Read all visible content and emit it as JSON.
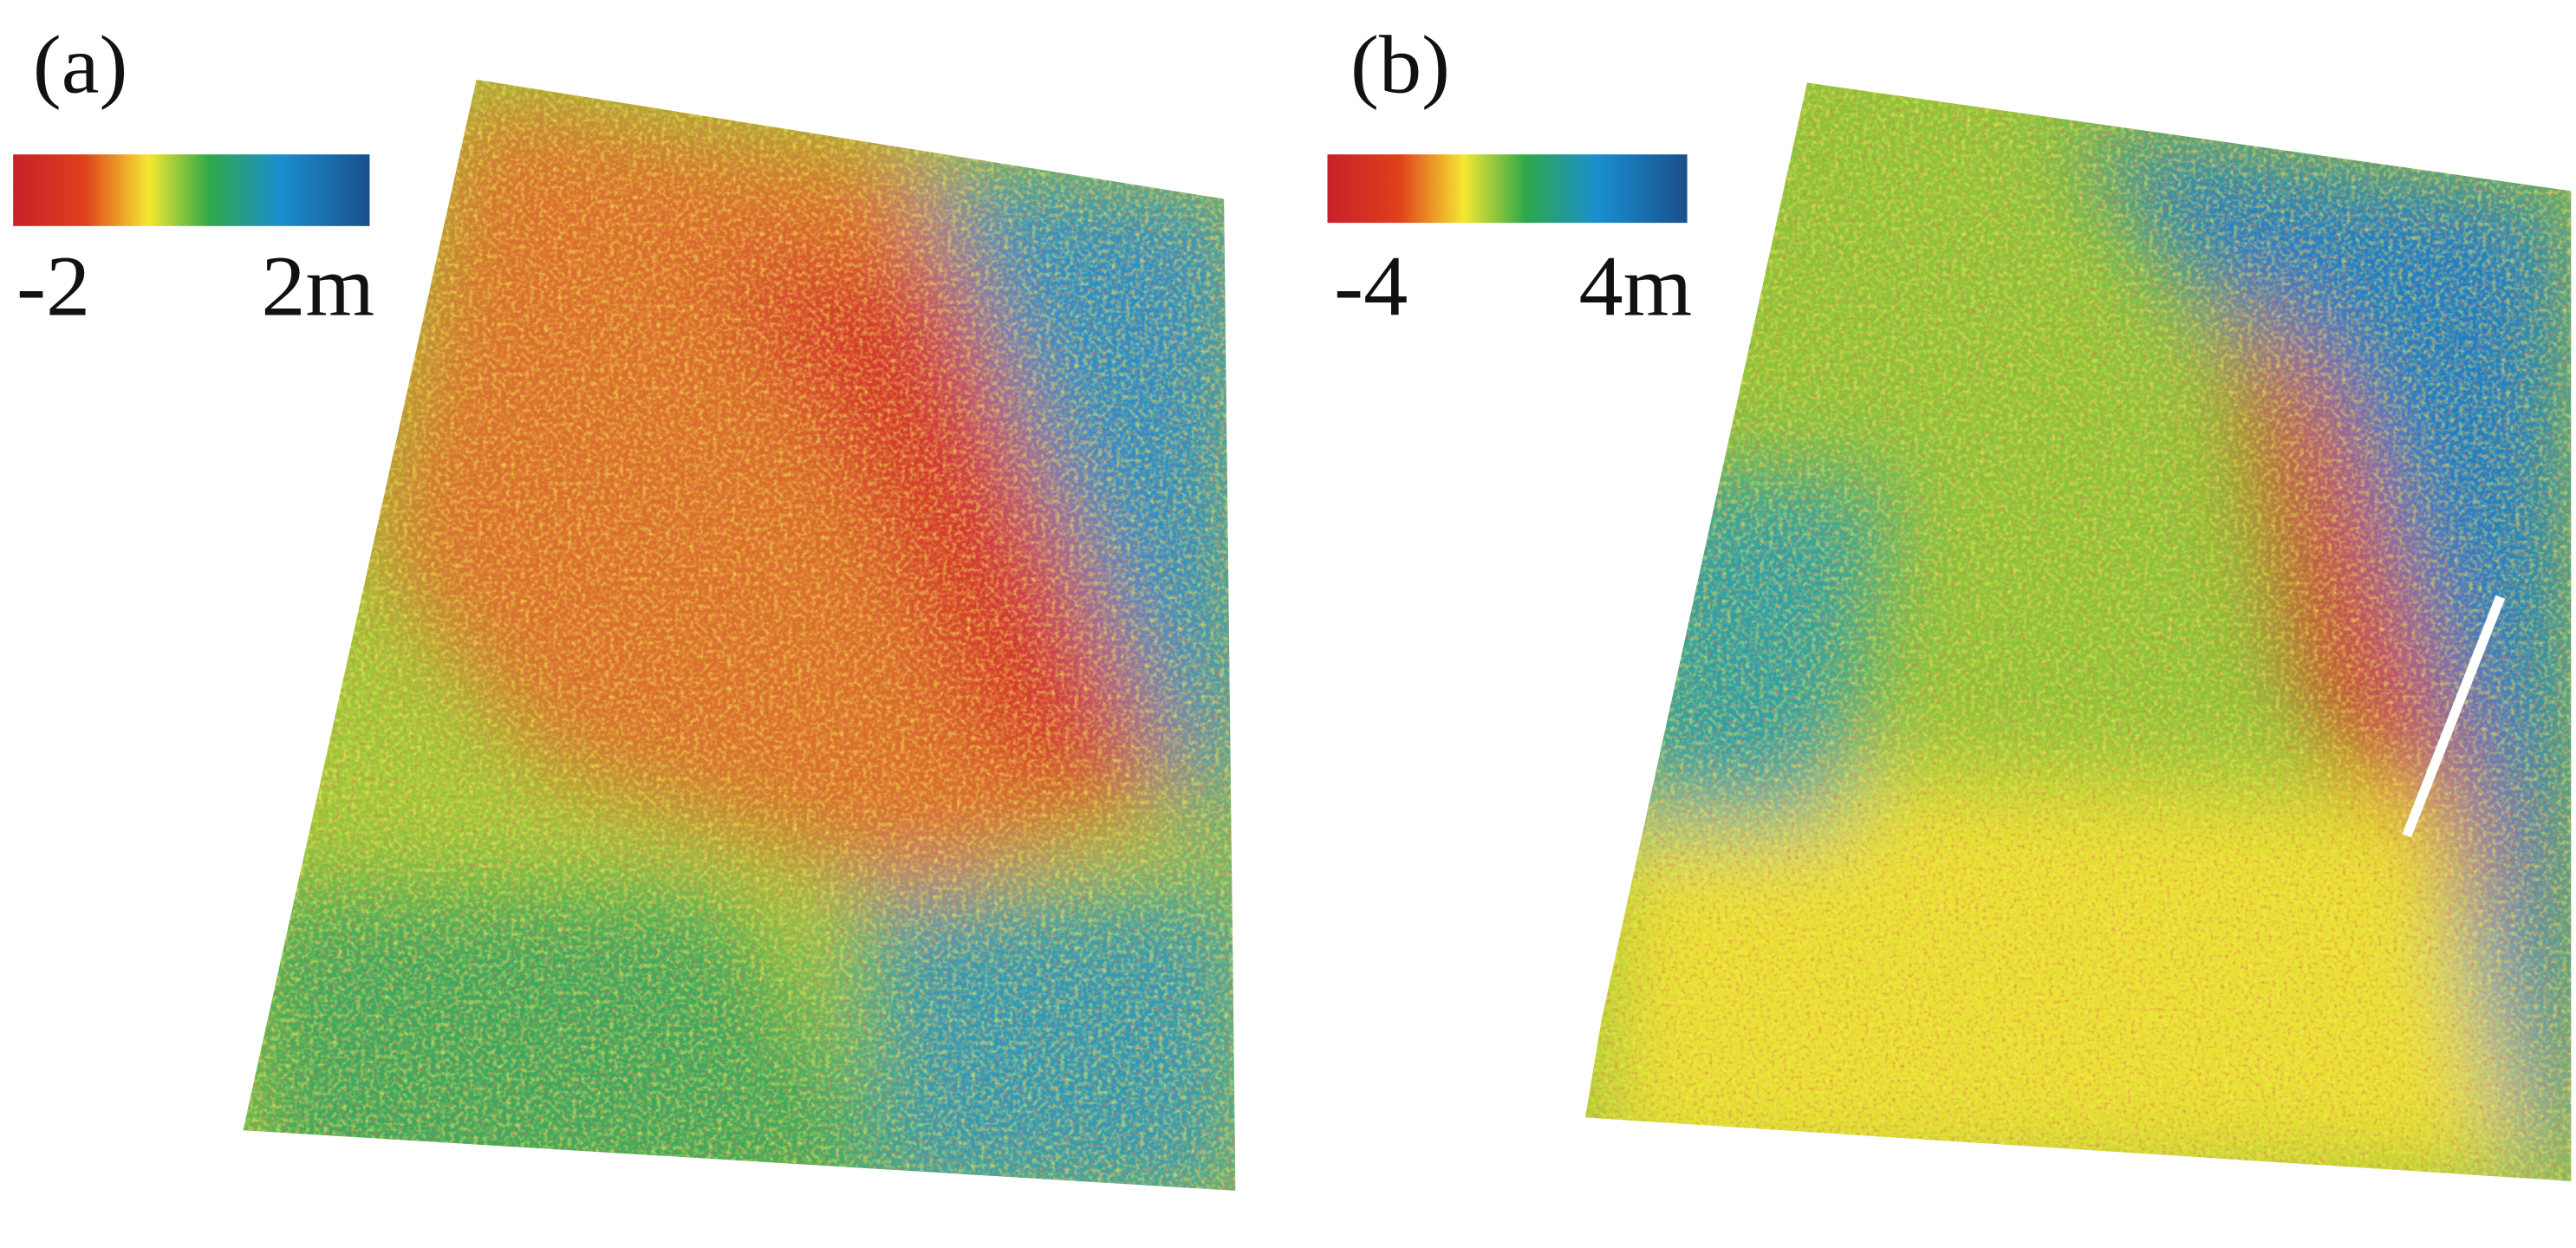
{
  "panels": [
    {
      "label": "(a)",
      "colorbar": {
        "min_label": "-2",
        "max_label": "2m"
      }
    },
    {
      "label": "(b)",
      "colorbar": {
        "min_label": "-4",
        "max_label": "4m"
      }
    }
  ]
}
